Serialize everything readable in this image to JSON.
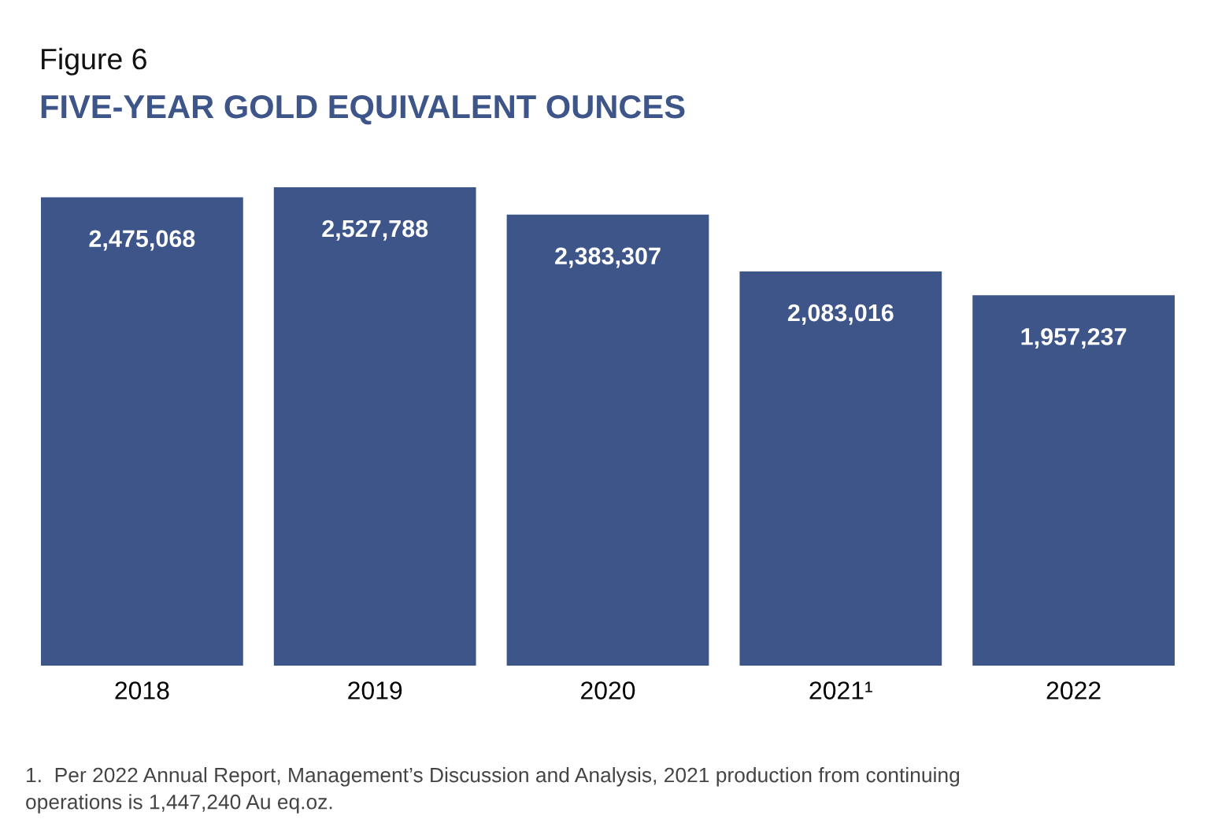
{
  "chart_data": {
    "type": "bar",
    "title": "Figure 6",
    "subtitle": "FIVE-YEAR GOLD EQUIVALENT OUNCES",
    "categories": [
      "2018",
      "2019",
      "2020",
      "2021¹",
      "2022"
    ],
    "values": [
      2475068,
      2527788,
      2383307,
      2083016,
      1957237
    ],
    "value_labels": [
      "2,475,068",
      "2,527,788",
      "2,383,307",
      "2,083,016",
      "1,957,237"
    ],
    "color": "#3d5588",
    "grid": false,
    "legend": false,
    "annotations": [
      "1.  Per 2022 Annual Report, Management’s Discussion and Analysis, 2021 production from continuing\noperations is 1,447,240 Au eq.oz."
    ]
  }
}
